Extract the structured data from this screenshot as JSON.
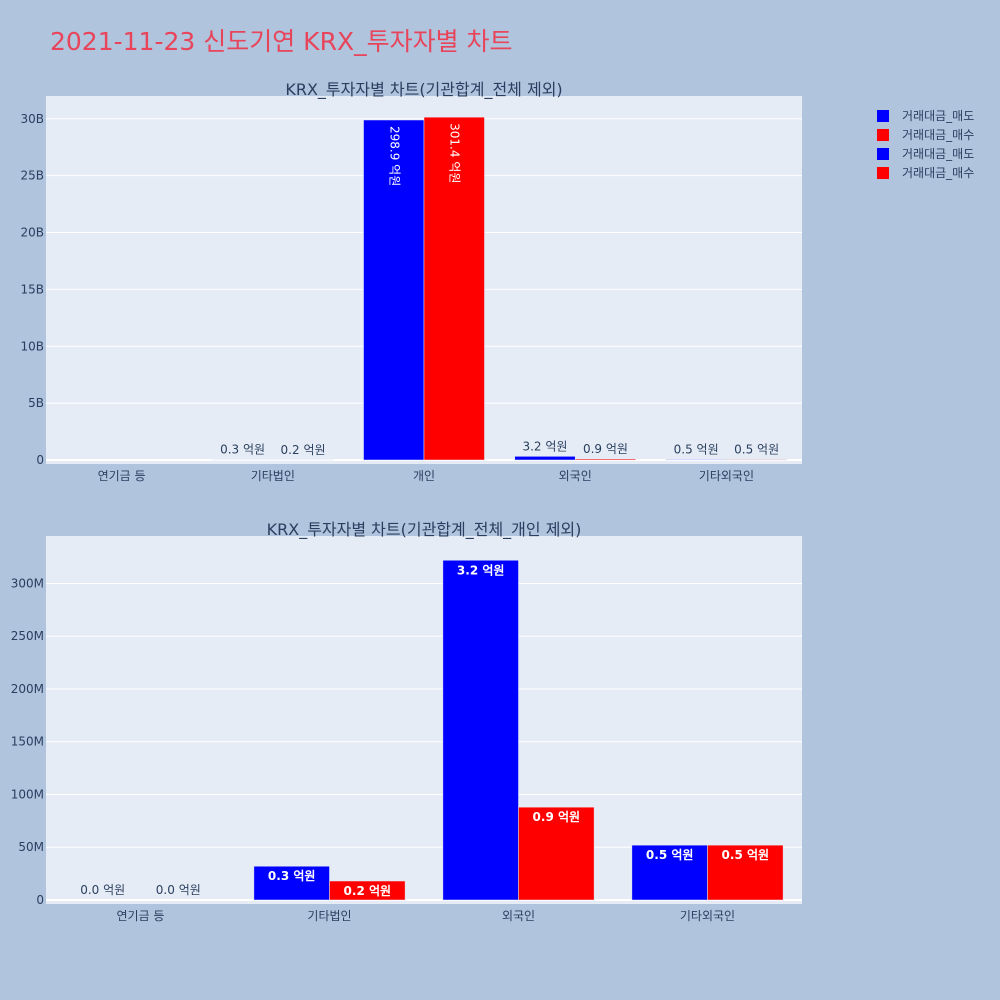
{
  "page_title": "2021-11-23 신도기연 KRX_투자자별 차트",
  "colors": {
    "title": "#e8445a",
    "sell": "#0000ff",
    "buy": "#ff0000",
    "plot_bg": "#e5ecf6",
    "page_bg": "#b0c4de"
  },
  "legend": {
    "entries": [
      {
        "label": "거래대금_매도",
        "color": "#0000ff"
      },
      {
        "label": "거래대금_매수",
        "color": "#ff0000"
      },
      {
        "label": "거래대금_매도",
        "color": "#0000ff"
      },
      {
        "label": "거래대금_매수",
        "color": "#ff0000"
      }
    ],
    "placement": "top-right"
  },
  "chart_data": [
    {
      "type": "bar",
      "title": "KRX_투자자별 차트(기관합계_전체 제외)",
      "categories": [
        "연기금 등",
        "기타법인",
        "개인",
        "외국인",
        "기타외국인"
      ],
      "ylim": [
        0,
        32000000000
      ],
      "yticks": [
        {
          "value": 0,
          "label": "0"
        },
        {
          "value": 5000000000,
          "label": "5B"
        },
        {
          "value": 10000000000,
          "label": "10B"
        },
        {
          "value": 15000000000,
          "label": "15B"
        },
        {
          "value": 20000000000,
          "label": "20B"
        },
        {
          "value": 25000000000,
          "label": "25B"
        },
        {
          "value": 30000000000,
          "label": "30B"
        }
      ],
      "grid": true,
      "series": [
        {
          "name": "거래대금_매도",
          "color": "#0000ff",
          "values": [
            0,
            30000000,
            29890000000,
            320000000,
            50000000
          ],
          "labels": [
            "",
            "0.3 억원",
            "298.9 억원",
            "3.2 억원",
            "0.5 억원"
          ]
        },
        {
          "name": "거래대금_매수",
          "color": "#ff0000",
          "values": [
            0,
            20000000,
            30140000000,
            90000000,
            50000000
          ],
          "labels": [
            "",
            "0.2 억원",
            "301.4 억원",
            "0.9 억원",
            "0.5 억원"
          ]
        }
      ]
    },
    {
      "type": "bar",
      "title": "KRX_투자자별 차트(기관합계_전체_개인 제외)",
      "categories": [
        "연기금 등",
        "기타법인",
        "외국인",
        "기타외국인"
      ],
      "ylim": [
        0,
        345000000
      ],
      "yticks": [
        {
          "value": 0,
          "label": "0"
        },
        {
          "value": 50000000,
          "label": "50M"
        },
        {
          "value": 100000000,
          "label": "100M"
        },
        {
          "value": 150000000,
          "label": "150M"
        },
        {
          "value": 200000000,
          "label": "200M"
        },
        {
          "value": 250000000,
          "label": "250M"
        },
        {
          "value": 300000000,
          "label": "300M"
        }
      ],
      "grid": true,
      "series": [
        {
          "name": "거래대금_매도",
          "color": "#0000ff",
          "values": [
            0,
            32000000,
            322000000,
            52000000
          ],
          "labels": [
            "0.0 억원",
            "0.3 억원",
            "3.2 억원",
            "0.5 억원"
          ]
        },
        {
          "name": "거래대금_매수",
          "color": "#ff0000",
          "values": [
            0,
            18000000,
            88000000,
            52000000
          ],
          "labels": [
            "0.0 억원",
            "0.2 억원",
            "0.9 억원",
            "0.5 억원"
          ]
        }
      ]
    }
  ]
}
